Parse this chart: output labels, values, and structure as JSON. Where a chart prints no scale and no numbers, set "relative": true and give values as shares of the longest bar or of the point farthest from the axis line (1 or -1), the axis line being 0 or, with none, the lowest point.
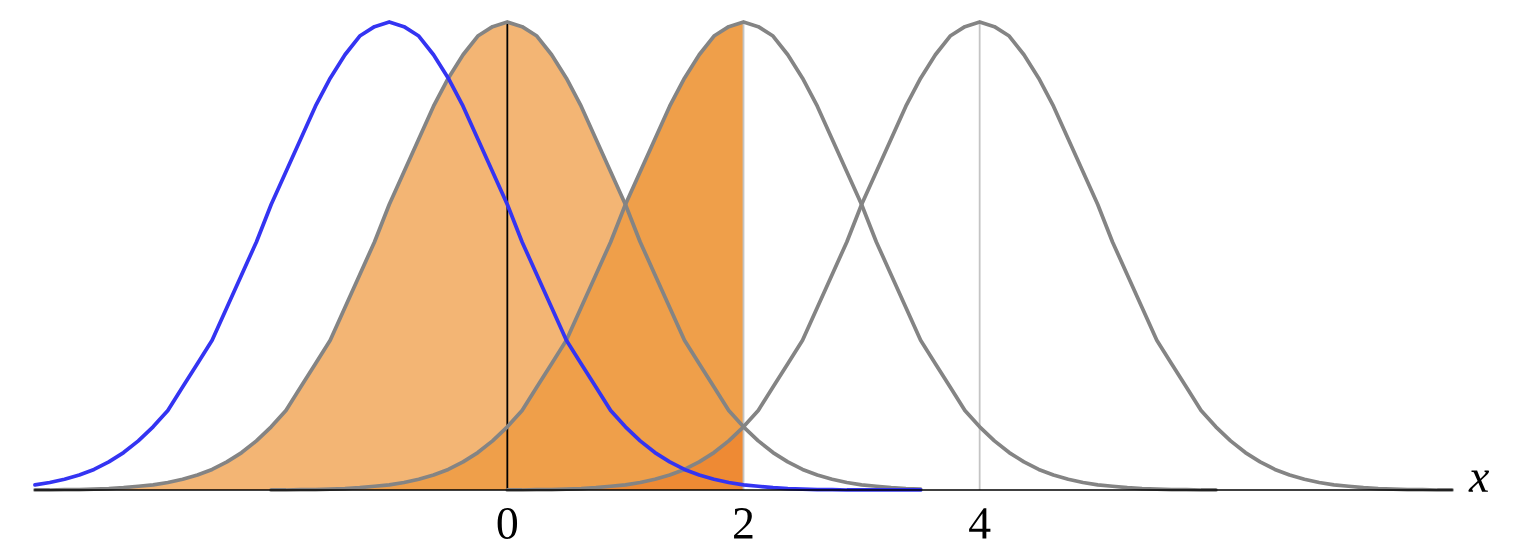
{
  "chart_data": {
    "type": "line",
    "relative": true,
    "xlabel": "x",
    "xlim": [
      -4,
      8
    ],
    "xticks": [
      0,
      2,
      4
    ],
    "x": [
      -4,
      -3.875,
      -3.75,
      -3.625,
      -3.5,
      -3.375,
      -3.25,
      -3.125,
      -3,
      -2.875,
      -2.75,
      -2.625,
      -2.5,
      -2.375,
      -2.25,
      -2.125,
      -2,
      -1.875,
      -1.75,
      -1.625,
      -1.5,
      -1.375,
      -1.25,
      -1.125,
      -1,
      -0.875,
      -0.75,
      -0.625,
      -0.5,
      -0.375,
      -0.25,
      -0.125,
      0,
      0.125,
      0.25,
      0.375,
      0.5,
      0.625,
      0.75,
      0.875,
      1,
      1.125,
      1.25,
      1.375,
      1.5,
      1.625,
      1.75,
      1.875,
      2,
      2.125,
      2.25,
      2.375,
      2.5,
      2.625,
      2.75,
      2.875,
      3,
      3.125,
      3.25,
      3.375,
      3.5,
      3.625,
      3.75,
      3.875,
      4,
      4.125,
      4.25,
      4.375,
      4.5,
      4.625,
      4.75,
      4.875,
      5,
      5.125,
      5.25,
      5.375,
      5.5,
      5.625,
      5.75,
      5.875,
      6,
      6.125,
      6.25,
      6.375,
      6.5,
      6.625,
      6.75,
      6.875,
      7,
      7.125,
      7.25,
      7.375,
      7.5,
      7.625,
      7.75,
      7.875,
      8
    ],
    "ref_lines": [
      {
        "axis": "x",
        "value": 0,
        "color": "#000000"
      },
      {
        "axis": "x",
        "value": 2,
        "color": "#c4c4c4"
      },
      {
        "axis": "x",
        "value": 4,
        "color": "#c4c4c4"
      }
    ],
    "series": [
      {
        "type": "area",
        "color": "#f3b574",
        "x": [
          -3.875,
          -3.75,
          -3.625,
          -3.5,
          -3.375,
          -3.25,
          -3.125,
          -3,
          -2.875,
          -2.75,
          -2.625,
          -2.5,
          -2.375,
          -2.25,
          -2.125,
          -2,
          -1.875,
          -1.75,
          -1.625,
          -1.5,
          -1.375,
          -1.25,
          -1.125,
          -1,
          -0.875,
          -0.75,
          -0.625,
          -0.5,
          -0.375,
          -0.25,
          -0.125,
          0,
          0.125,
          0.25,
          0.375,
          0.5,
          0.625,
          0.75,
          0.875,
          1
        ],
        "values": [
          0,
          0.001,
          0.001,
          0.002,
          0.003,
          0.005,
          0.008,
          0.011,
          0.016,
          0.023,
          0.032,
          0.044,
          0.06,
          0.08,
          0.105,
          0.135,
          0.17,
          0.22,
          0.27,
          0.32,
          0.39,
          0.46,
          0.53,
          0.61,
          0.68,
          0.75,
          0.82,
          0.88,
          0.93,
          0.97,
          0.99,
          1,
          0.99,
          0.97,
          0.93,
          0.88,
          0.82,
          0.75,
          0.68,
          0.61
        ]
      },
      {
        "type": "area",
        "color": "#ef9f4a",
        "x": [
          -1.875,
          -1.75,
          -1.625,
          -1.5,
          -1.375,
          -1.25,
          -1.125,
          -1,
          -0.875,
          -0.75,
          -0.625,
          -0.5,
          -0.375,
          -0.25,
          -0.125,
          0,
          0.125,
          0.25,
          0.375,
          0.5,
          0.625,
          0.75,
          0.875,
          1,
          1.125,
          1.25,
          1.375,
          1.5,
          1.625,
          1.75,
          1.875,
          2
        ],
        "values": [
          0,
          0.001,
          0.001,
          0.002,
          0.003,
          0.005,
          0.008,
          0.011,
          0.016,
          0.023,
          0.032,
          0.044,
          0.06,
          0.08,
          0.105,
          0.135,
          0.17,
          0.22,
          0.27,
          0.32,
          0.39,
          0.46,
          0.53,
          0.61,
          0.68,
          0.75,
          0.82,
          0.88,
          0.93,
          0.97,
          0.99,
          1
        ]
      },
      {
        "type": "area",
        "color": "#ee8a34",
        "x": [
          0.125,
          0.25,
          0.375,
          0.5,
          0.625,
          0.75,
          0.875,
          1,
          1.125,
          1.25,
          1.375,
          1.5,
          1.625,
          1.75,
          1.875,
          2
        ],
        "values": [
          0,
          0.001,
          0.001,
          0.002,
          0.003,
          0.005,
          0.008,
          0.011,
          0.016,
          0.023,
          0.032,
          0.044,
          0.06,
          0.08,
          0.105,
          0.135
        ]
      },
      {
        "color": "#848484",
        "values": [
          0,
          0,
          0.001,
          0.001,
          0.002,
          0.003,
          0.005,
          0.008,
          0.011,
          0.016,
          0.023,
          0.032,
          0.044,
          0.06,
          0.08,
          0.105,
          0.135,
          0.17,
          0.22,
          0.27,
          0.32,
          0.39,
          0.46,
          0.53,
          0.61,
          0.68,
          0.75,
          0.82,
          0.88,
          0.93,
          0.97,
          0.99,
          1,
          0.99,
          0.97,
          0.93,
          0.88,
          0.82,
          0.75,
          0.68,
          0.61,
          0.53,
          0.46,
          0.39,
          0.32,
          0.27,
          0.22,
          0.17,
          0.135,
          0.105,
          0.08,
          0.06,
          0.044,
          0.032,
          0.023,
          0.016,
          0.011,
          0.008,
          0.005,
          0.003,
          0.002,
          null,
          null,
          null,
          null,
          null,
          null,
          null,
          null,
          null,
          null,
          null,
          null,
          null,
          null,
          null,
          null,
          null,
          null,
          null,
          null,
          null,
          null,
          null,
          null,
          null,
          null,
          null,
          null,
          null,
          null,
          null,
          null,
          null,
          null,
          null,
          null
        ]
      },
      {
        "color": "#848484",
        "values": [
          null,
          null,
          null,
          null,
          null,
          null,
          null,
          null,
          null,
          null,
          null,
          null,
          null,
          null,
          null,
          null,
          0,
          0,
          0.001,
          0.001,
          0.002,
          0.003,
          0.005,
          0.008,
          0.011,
          0.016,
          0.023,
          0.032,
          0.044,
          0.06,
          0.08,
          0.105,
          0.135,
          0.17,
          0.22,
          0.27,
          0.32,
          0.39,
          0.46,
          0.53,
          0.61,
          0.68,
          0.75,
          0.82,
          0.88,
          0.93,
          0.97,
          0.99,
          1,
          0.99,
          0.97,
          0.93,
          0.88,
          0.82,
          0.75,
          0.68,
          0.61,
          0.53,
          0.46,
          0.39,
          0.32,
          0.27,
          0.22,
          0.17,
          0.135,
          0.105,
          0.08,
          0.06,
          0.044,
          0.032,
          0.023,
          0.016,
          0.011,
          0.008,
          0.005,
          0.003,
          0.002,
          0.001,
          0.001,
          0,
          0,
          null,
          null,
          null,
          null,
          null,
          null,
          null,
          null,
          null,
          null,
          null,
          null,
          null,
          null,
          null,
          null
        ]
      },
      {
        "color": "#848484",
        "values": [
          null,
          null,
          null,
          null,
          null,
          null,
          null,
          null,
          null,
          null,
          null,
          null,
          null,
          null,
          null,
          null,
          null,
          null,
          null,
          null,
          null,
          null,
          null,
          null,
          null,
          null,
          null,
          null,
          null,
          null,
          null,
          null,
          0,
          0,
          0.001,
          0.001,
          0.002,
          0.003,
          0.005,
          0.008,
          0.011,
          0.016,
          0.023,
          0.032,
          0.044,
          0.06,
          0.08,
          0.105,
          0.135,
          0.17,
          0.22,
          0.27,
          0.32,
          0.39,
          0.46,
          0.53,
          0.61,
          0.68,
          0.75,
          0.82,
          0.88,
          0.93,
          0.97,
          0.99,
          1,
          0.99,
          0.97,
          0.93,
          0.88,
          0.82,
          0.75,
          0.68,
          0.61,
          0.53,
          0.46,
          0.39,
          0.32,
          0.27,
          0.22,
          0.17,
          0.135,
          0.105,
          0.08,
          0.06,
          0.044,
          0.032,
          0.023,
          0.016,
          0.011,
          0.008,
          0.005,
          0.003,
          0.002,
          0.001,
          0.001,
          0,
          0
        ]
      },
      {
        "color": "#3434f2",
        "values": [
          0.011,
          0.016,
          0.023,
          0.032,
          0.044,
          0.06,
          0.08,
          0.105,
          0.135,
          0.17,
          0.22,
          0.27,
          0.32,
          0.39,
          0.46,
          0.53,
          0.61,
          0.68,
          0.75,
          0.82,
          0.88,
          0.93,
          0.97,
          0.99,
          1,
          0.99,
          0.97,
          0.93,
          0.88,
          0.82,
          0.75,
          0.68,
          0.61,
          0.53,
          0.46,
          0.39,
          0.32,
          0.27,
          0.22,
          0.17,
          0.135,
          0.105,
          0.08,
          0.06,
          0.044,
          0.032,
          0.023,
          0.016,
          0.011,
          0.008,
          0.005,
          0.003,
          0.002,
          0.001,
          0.001,
          0,
          0,
          0,
          0,
          0,
          0,
          null,
          null,
          null,
          null,
          null,
          null,
          null,
          null,
          null,
          null,
          null,
          null,
          null,
          null,
          null,
          null,
          null,
          null,
          null,
          null,
          null,
          null,
          null,
          null,
          null,
          null,
          null,
          null,
          null,
          null,
          null,
          null,
          null,
          null,
          null,
          null
        ]
      }
    ]
  }
}
